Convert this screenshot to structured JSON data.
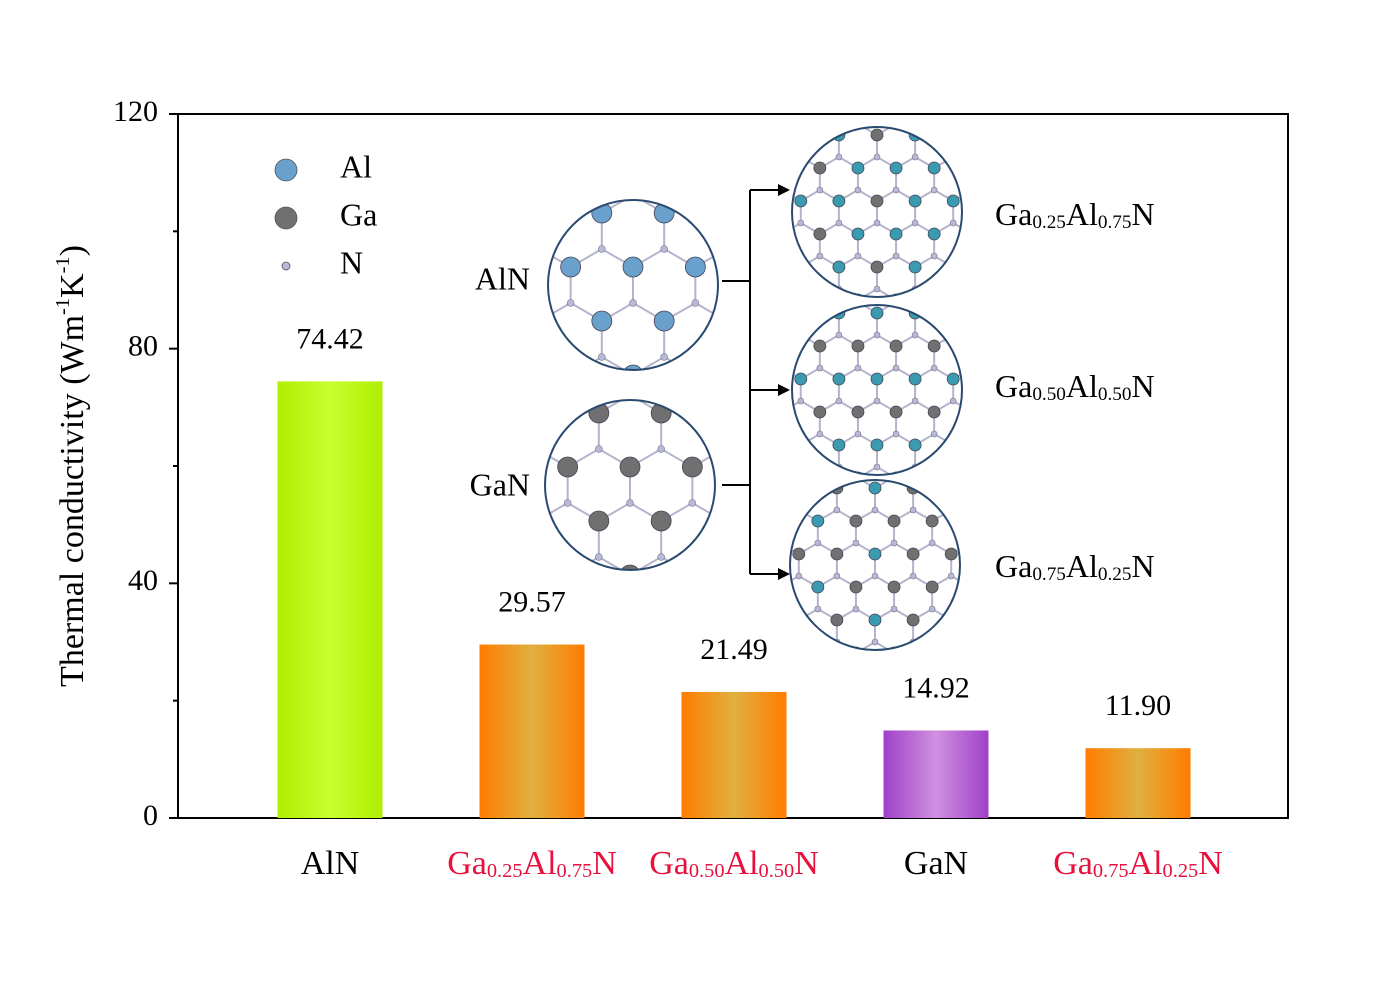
{
  "chart_data": {
    "type": "bar",
    "ylabel": "Thermal conductivity (Wm-1K-1)",
    "categories": [
      "AlN",
      "Ga0.25Al0.75N",
      "Ga0.50Al0.50N",
      "GaN",
      "Ga0.75Al0.25N"
    ],
    "label_colors": [
      "#000000",
      "#e8103c",
      "#e8103c",
      "#000000",
      "#e8103c"
    ],
    "values": [
      74.42,
      29.57,
      21.49,
      14.92,
      11.9
    ],
    "value_labels": [
      "74.42",
      "29.57",
      "21.49",
      "14.92",
      "11.90"
    ],
    "colors": [
      "#b0ee00",
      "#ff7c00",
      "#ff7c00",
      "#a040c8",
      "#ff7c00"
    ],
    "highlight_colors": [
      "#c8ff30",
      "#e0b040",
      "#e0b040",
      "#d090e0",
      "#e0b040"
    ],
    "ylim": [
      0,
      120
    ],
    "yticks": [
      0,
      40,
      80,
      120
    ],
    "minor_yticks": [
      20,
      60,
      100
    ],
    "atom_legend": [
      {
        "name": "Al",
        "color": "#6aa0cc"
      },
      {
        "name": "Ga",
        "color": "#707070"
      },
      {
        "name": "N",
        "color": "#b8b8d8"
      }
    ],
    "structures": [
      "AlN",
      "GaN"
    ],
    "alloys": [
      "Ga0.25Al0.75N",
      "Ga0.50Al0.50N",
      "Ga0.75Al0.25N"
    ]
  }
}
